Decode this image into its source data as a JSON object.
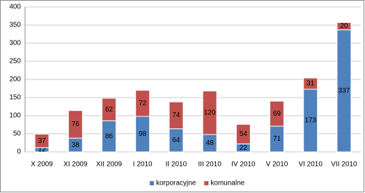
{
  "chart_data": {
    "type": "stacked_bar",
    "categories": [
      "X 2009",
      "XI 2009",
      "XII 2009",
      "I 2010",
      "II 2010",
      "III 2010",
      "IV 2010",
      "V 2010",
      "VI 2010",
      "VII 2010"
    ],
    "series": [
      {
        "name": "korporacyjne",
        "color": "#4f81bd",
        "values": [
          12,
          38,
          86,
          98,
          64,
          48,
          22,
          71,
          173,
          337
        ]
      },
      {
        "name": "komunalne",
        "color": "#c0504d",
        "values": [
          37,
          76,
          62,
          72,
          74,
          120,
          54,
          69,
          31,
          20
        ]
      }
    ],
    "ylim": [
      0,
      400
    ],
    "yticks": [
      0,
      50,
      100,
      150,
      200,
      250,
      300,
      350,
      400
    ],
    "grid": true,
    "legend": "bottom"
  }
}
